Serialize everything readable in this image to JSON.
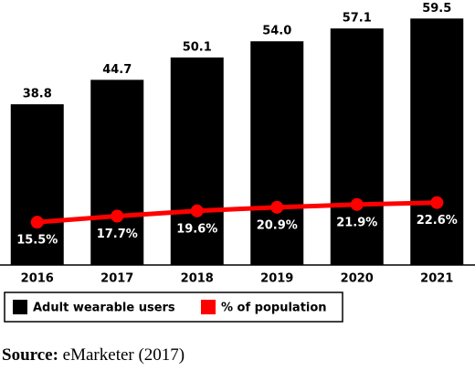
{
  "chart_data": {
    "type": "bar",
    "categories": [
      "2016",
      "2017",
      "2018",
      "2019",
      "2020",
      "2021"
    ],
    "series": [
      {
        "name": "Adult wearable users",
        "color": "#000000",
        "values": [
          38.8,
          44.7,
          50.1,
          54.0,
          57.1,
          59.5
        ],
        "value_labels": [
          "38.8",
          "44.7",
          "50.1",
          "54.0",
          "57.1",
          "59.5"
        ]
      },
      {
        "name": "% of population",
        "type": "line",
        "axis": "y2",
        "color": "#ff0000",
        "values": [
          15.5,
          17.7,
          19.6,
          20.9,
          21.9,
          22.6
        ],
        "value_labels": [
          "15.5%",
          "17.7%",
          "19.6%",
          "20.9%",
          "21.9%",
          "22.6%"
        ]
      }
    ],
    "ylim": [
      0,
      60
    ],
    "y2lim": [
      0,
      90
    ],
    "legend": "bottom",
    "source_label": "Source:",
    "source_text": "eMarketer (2017)"
  }
}
